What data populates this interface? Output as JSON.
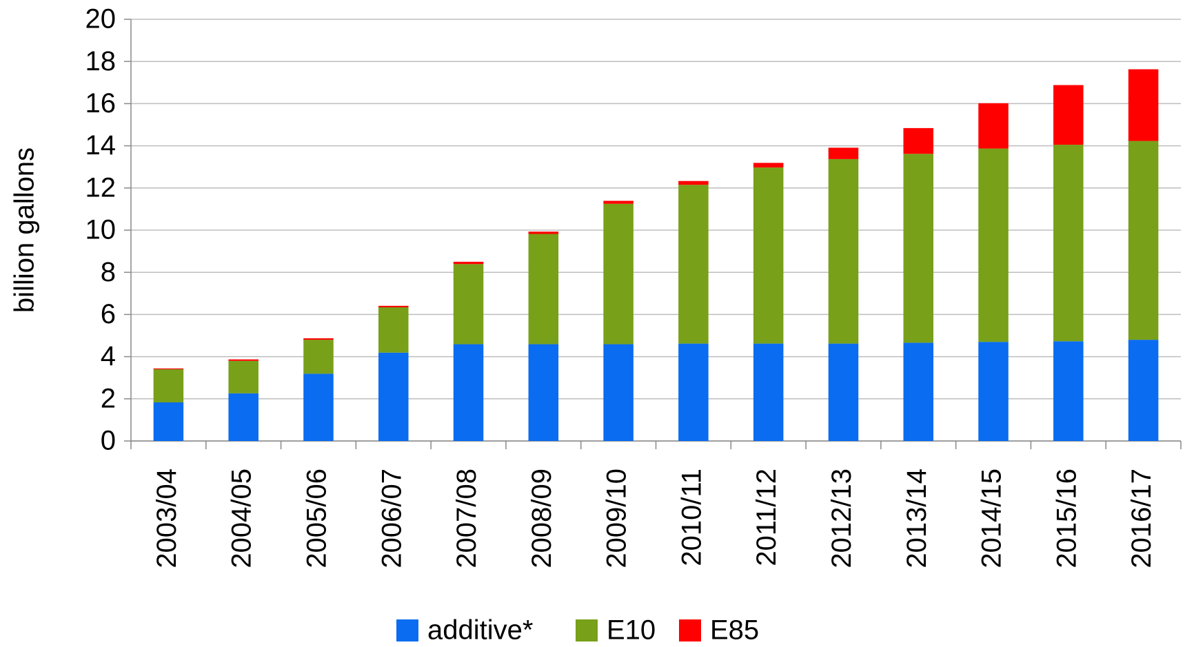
{
  "chart_data": {
    "type": "bar",
    "stacked": true,
    "y_label": "billion gallons",
    "categories": [
      "2003/04",
      "2004/05",
      "2005/06",
      "2006/07",
      "2007/08",
      "2008/09",
      "2009/10",
      "2010/11",
      "2011/12",
      "2012/13",
      "2013/14",
      "2014/15",
      "2015/16",
      "2016/17"
    ],
    "series": [
      {
        "name": "additive*",
        "color": "#0a6cf0",
        "values": [
          1.83,
          2.26,
          3.19,
          4.19,
          4.59,
          4.59,
          4.59,
          4.62,
          4.62,
          4.62,
          4.66,
          4.7,
          4.73,
          4.8
        ]
      },
      {
        "name": "E10",
        "color": "#78a019",
        "values": [
          1.57,
          1.54,
          1.61,
          2.15,
          3.8,
          5.23,
          6.66,
          7.53,
          8.35,
          8.75,
          8.96,
          9.17,
          9.32,
          9.43
        ]
      },
      {
        "name": "E85",
        "color": "#ff0000",
        "values": [
          0.04,
          0.07,
          0.07,
          0.07,
          0.11,
          0.11,
          0.14,
          0.18,
          0.22,
          0.54,
          1.22,
          2.15,
          2.83,
          3.4
        ]
      }
    ],
    "ylim": [
      0,
      20
    ],
    "yticks": [
      0,
      2,
      4,
      6,
      8,
      10,
      12,
      14,
      16,
      18,
      20
    ],
    "grid": true,
    "legend": "bottom"
  }
}
